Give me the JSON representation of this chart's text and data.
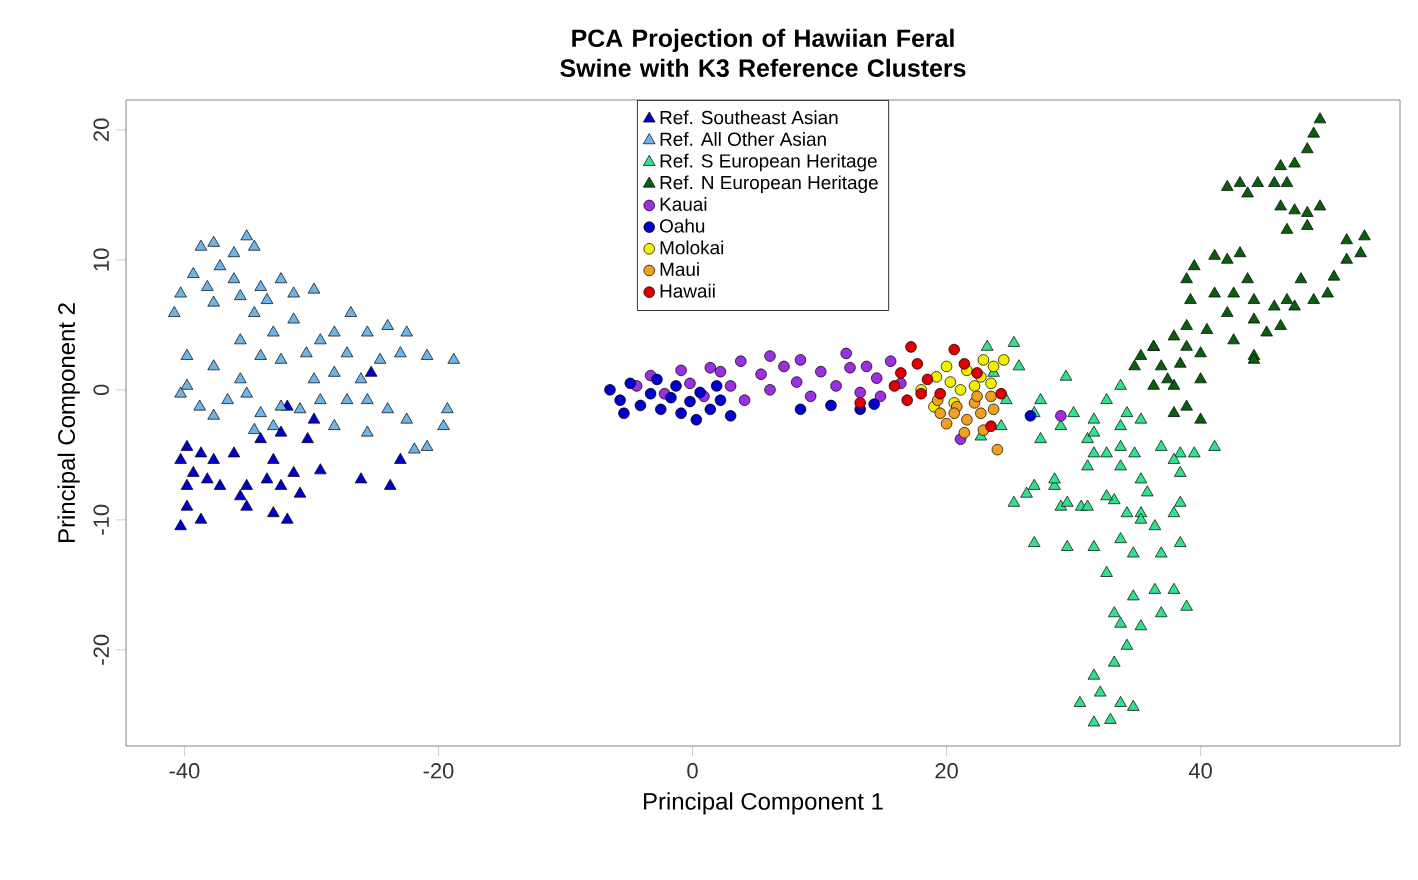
{
  "chart_data": {
    "type": "scatter",
    "title": "PCA Projection of Hawiian Feral Swine with K3 Reference Clusters",
    "xlabel": "Principal Component 1",
    "ylabel": "Principal Component 2",
    "xlim": [
      -44.6,
      55.7
    ],
    "ylim": [
      -27.4,
      22.3
    ],
    "xticks": [
      -40,
      -20,
      0,
      20,
      40
    ],
    "yticks": [
      -20,
      -10,
      0,
      10,
      20
    ],
    "legend": "top",
    "series": [
      {
        "name": "Ref. Southeast Asian",
        "color": "#0000cc",
        "marker": "triangle",
        "x": [
          -39.8,
          -38.7,
          -40.3,
          -37.7,
          -39.3,
          -38.2,
          -36.1,
          -39.8,
          -37.2,
          -35.1,
          -33.5,
          -32.4,
          -30.9,
          -31.4,
          -33.0,
          -34.0,
          -32.4,
          -39.8,
          -38.7,
          -40.3,
          -35.1,
          -33.0,
          -31.9,
          -35.6,
          -29.3,
          -26.1,
          -23.8,
          -23.0,
          -31.9,
          -29.8,
          -25.3,
          -30.3
        ],
        "values": [
          -4.4,
          -4.9,
          -5.4,
          -5.4,
          -6.4,
          -6.9,
          -4.9,
          -7.4,
          -7.4,
          -7.4,
          -6.9,
          -7.4,
          -8.0,
          -6.4,
          -5.4,
          -3.8,
          -3.3,
          -9.0,
          -10.0,
          -10.5,
          -9.0,
          -9.5,
          -10.0,
          -8.2,
          -6.2,
          -6.9,
          -7.4,
          -5.4,
          -1.3,
          -2.3,
          1.3,
          -3.8
        ]
      },
      {
        "name": "Ref. All Other Asian",
        "color": "#6eb4e8",
        "marker": "triangle",
        "x": [
          -38.7,
          -37.7,
          -35.1,
          -36.1,
          -34.5,
          -37.2,
          -39.3,
          -40.3,
          -40.8,
          -38.2,
          -36.1,
          -34.0,
          -32.4,
          -31.4,
          -29.8,
          -33.5,
          -35.6,
          -37.7,
          -34.5,
          -33.0,
          -35.6,
          -31.4,
          -30.4,
          -32.4,
          -34.0,
          -29.3,
          -28.2,
          -26.9,
          -25.6,
          -24.0,
          -22.5,
          -20.9,
          -18.8,
          -24.6,
          -27.2,
          -26.1,
          -28.2,
          -29.8,
          -23.0,
          -39.8,
          -37.7,
          -39.8,
          -38.8,
          -36.6,
          -35.1,
          -34.0,
          -32.4,
          -30.9,
          -29.3,
          -27.2,
          -25.6,
          -24.0,
          -22.5,
          -20.9,
          -19.3,
          -19.6,
          -21.9,
          -25.6,
          -28.2,
          -33.0,
          -34.5,
          -37.7,
          -40.3,
          -35.6
        ],
        "values": [
          11.0,
          11.3,
          11.8,
          10.5,
          11.0,
          9.5,
          8.9,
          7.4,
          5.9,
          7.9,
          8.5,
          7.9,
          8.5,
          7.4,
          7.7,
          6.9,
          7.2,
          6.7,
          5.9,
          4.4,
          3.8,
          5.4,
          2.8,
          2.3,
          2.6,
          3.8,
          4.4,
          5.9,
          4.4,
          4.9,
          4.4,
          2.6,
          2.3,
          2.3,
          2.8,
          0.8,
          1.3,
          0.8,
          2.8,
          2.6,
          1.8,
          0.3,
          -1.3,
          -0.8,
          -0.3,
          -1.8,
          -1.3,
          -1.5,
          -0.8,
          -0.8,
          -0.8,
          -1.5,
          -2.3,
          -4.4,
          -1.5,
          -2.8,
          -4.6,
          -3.3,
          -2.8,
          -2.8,
          -3.1,
          -2.0,
          -0.3,
          0.8
        ]
      },
      {
        "name": "Ref. S European Heritage",
        "color": "#33e08c",
        "marker": "triangle",
        "x": [
          23.2,
          25.3,
          23.7,
          25.7,
          24.7,
          27.4,
          29.4,
          26.9,
          24.3,
          22.7,
          27.4,
          29.0,
          30.0,
          31.1,
          31.6,
          32.6,
          33.7,
          34.2,
          35.3,
          31.6,
          33.7,
          34.8,
          36.9,
          38.4,
          26.9,
          28.5,
          30.6,
          29.0,
          33.2,
          35.8,
          37.9,
          35.3,
          26.3,
          28.5,
          25.3,
          29.5,
          31.1,
          32.6,
          34.2,
          35.3,
          36.4,
          33.7,
          31.6,
          29.5,
          26.9,
          34.7,
          36.9,
          38.4,
          38.4,
          37.9,
          39.5,
          41.1,
          38.4,
          35.3,
          32.6,
          34.7,
          36.4,
          37.9,
          38.9,
          36.9,
          35.3,
          33.7,
          33.2,
          34.2,
          33.2,
          31.6,
          32.1,
          30.5,
          33.7,
          34.7,
          31.6,
          32.9,
          32.6,
          33.7,
          31.6,
          31.1,
          33.7
        ],
        "values": [
          3.3,
          3.6,
          1.3,
          1.8,
          -0.8,
          -0.8,
          1.0,
          -1.8,
          -2.8,
          -3.6,
          -3.8,
          -2.8,
          -1.8,
          -3.8,
          -2.3,
          -0.8,
          0.3,
          -1.8,
          -2.3,
          -4.9,
          -4.4,
          -4.9,
          -4.4,
          -4.9,
          -7.4,
          -7.4,
          -9.0,
          -9.0,
          -8.5,
          -7.9,
          -9.5,
          -9.5,
          -8.0,
          -6.9,
          -8.7,
          -8.7,
          -9.0,
          -8.2,
          -9.5,
          -10.0,
          -10.5,
          -11.5,
          -12.1,
          -12.1,
          -11.8,
          -12.6,
          -12.6,
          -11.8,
          -8.7,
          -5.4,
          -4.9,
          -4.4,
          -6.4,
          -6.9,
          -14.1,
          -15.9,
          -15.4,
          -15.4,
          -16.7,
          -17.2,
          -18.2,
          -18.0,
          -17.2,
          -19.7,
          -21.0,
          -22.0,
          -23.3,
          -24.1,
          -24.1,
          -24.4,
          -25.6,
          -25.4,
          -4.9,
          -2.8,
          -3.3,
          -5.9,
          -5.9
        ]
      },
      {
        "name": "Ref. N European Heritage",
        "color": "#0b5e0b",
        "marker": "triangle",
        "x": [
          49.4,
          48.9,
          48.4,
          47.4,
          46.3,
          42.1,
          43.1,
          44.5,
          45.8,
          43.7,
          46.8,
          46.3,
          47.4,
          48.4,
          49.4,
          48.4,
          46.8,
          51.5,
          52.9,
          52.6,
          51.5,
          50.5,
          50.0,
          48.9,
          47.9,
          46.8,
          45.8,
          44.2,
          43.7,
          43.1,
          42.1,
          41.1,
          39.5,
          38.9,
          39.2,
          41.1,
          42.6,
          42.1,
          44.2,
          46.3,
          44.2,
          42.6,
          40.5,
          38.9,
          37.9,
          36.3,
          35.3,
          36.9,
          38.4,
          40.0,
          37.9,
          36.3,
          40.0,
          47.4,
          45.2,
          44.2,
          40.0,
          38.9,
          38.9,
          36.3,
          34.8,
          37.4,
          37.9
        ],
        "values": [
          20.8,
          19.7,
          18.5,
          17.4,
          17.2,
          15.6,
          15.9,
          15.9,
          15.9,
          15.1,
          15.9,
          14.1,
          13.8,
          13.6,
          14.1,
          12.6,
          12.3,
          11.5,
          11.8,
          10.5,
          10.0,
          8.7,
          7.4,
          6.9,
          8.5,
          6.9,
          6.4,
          6.9,
          8.5,
          10.5,
          10.0,
          10.3,
          9.5,
          8.5,
          6.9,
          7.4,
          7.4,
          5.9,
          5.4,
          4.9,
          2.6,
          3.8,
          4.6,
          4.9,
          4.1,
          3.3,
          2.6,
          1.8,
          2.0,
          2.8,
          0.3,
          0.3,
          0.8,
          6.4,
          4.4,
          2.3,
          -2.3,
          -1.3,
          3.3,
          3.3,
          1.8,
          0.8,
          -1.8
        ]
      },
      {
        "name": "Kauai",
        "color": "#9b30e0",
        "marker": "circle",
        "x": [
          -4.4,
          -3.3,
          -2.2,
          -0.9,
          -0.2,
          0.9,
          2.2,
          3.0,
          4.1,
          5.4,
          6.1,
          7.2,
          8.2,
          9.3,
          10.1,
          11.3,
          12.4,
          13.2,
          14.5,
          15.6,
          16.4,
          12.1,
          13.7,
          21.1,
          29.0,
          8.5,
          6.1,
          3.8,
          1.4,
          14.8
        ],
        "values": [
          0.3,
          1.1,
          -0.3,
          1.5,
          0.5,
          -0.5,
          1.4,
          0.3,
          -0.8,
          1.2,
          0,
          1.8,
          0.6,
          -0.5,
          1.4,
          0.3,
          1.7,
          -0.2,
          0.9,
          2.2,
          0.5,
          2.8,
          1.8,
          -3.8,
          -2.0,
          2.3,
          2.6,
          2.2,
          1.7,
          -0.5
        ]
      },
      {
        "name": "Oahu",
        "color": "#0000cd",
        "marker": "circle",
        "x": [
          -6.5,
          -5.7,
          -4.9,
          -4.1,
          -3.3,
          -2.5,
          -1.7,
          -0.9,
          -0.2,
          0.6,
          1.4,
          2.2,
          3.0,
          -5.4,
          -2.8,
          0.3,
          -1.3,
          1.9,
          13.2,
          14.3,
          26.6,
          10.9,
          8.5
        ],
        "values": [
          0,
          -0.8,
          0.5,
          -1.2,
          -0.3,
          -1.5,
          -0.6,
          -1.8,
          -0.9,
          -0.2,
          -1.5,
          -0.8,
          -2.0,
          -1.8,
          0.8,
          -2.3,
          0.3,
          0.3,
          -1.5,
          -1.1,
          -2.0,
          -1.2,
          -1.5
        ]
      },
      {
        "name": "Molokai",
        "color": "#f0f000",
        "marker": "circle",
        "x": [
          19.2,
          20.0,
          21.6,
          22.7,
          23.7,
          24.5,
          20.3,
          21.1,
          22.2,
          23.5,
          19.0,
          18.0,
          20.6,
          22.9
        ],
        "values": [
          1.0,
          1.8,
          1.5,
          1.0,
          1.8,
          2.3,
          0.6,
          0,
          0.3,
          0.5,
          -1.3,
          0,
          -1.0,
          2.3
        ]
      },
      {
        "name": "Maui",
        "color": "#f0a020",
        "marker": "circle",
        "x": [
          19.5,
          20.8,
          22.2,
          23.5,
          20.0,
          21.6,
          22.7,
          23.7,
          21.4,
          22.9,
          19.3,
          20.6,
          24.0,
          22.4
        ],
        "values": [
          -1.8,
          -1.3,
          -1.0,
          -0.5,
          -2.6,
          -2.3,
          -1.8,
          -1.5,
          -3.3,
          -3.1,
          -0.8,
          -1.8,
          -4.6,
          -0.5
        ]
      },
      {
        "name": "Hawaii",
        "color": "#e00000",
        "marker": "circle",
        "x": [
          17.2,
          17.7,
          16.4,
          18.5,
          20.6,
          21.4,
          15.9,
          16.9,
          18.0,
          13.2,
          24.3,
          23.5,
          19.5,
          22.4
        ],
        "values": [
          3.3,
          2.0,
          1.3,
          0.8,
          3.1,
          2.0,
          0.3,
          -0.8,
          -0.3,
          -1.0,
          -0.3,
          -2.8,
          -0.3,
          1.3
        ]
      }
    ]
  }
}
